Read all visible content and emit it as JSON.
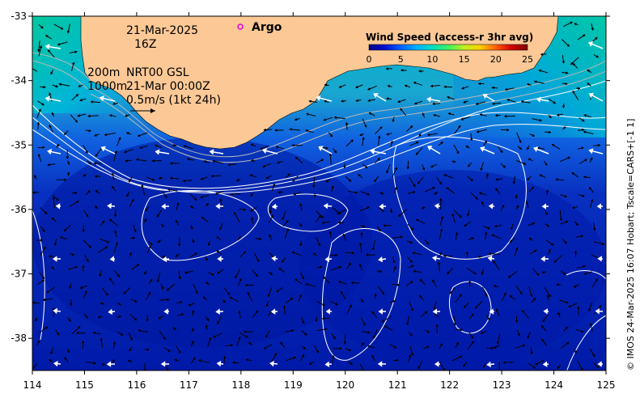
{
  "chart_data": {
    "type": "map",
    "region": "South-west Western Australia ocean surface currents",
    "x_axis": {
      "range": [
        114,
        125
      ],
      "ticks": [
        "114",
        "115",
        "116",
        "117",
        "118",
        "119",
        "120",
        "121",
        "122",
        "123",
        "124",
        "125"
      ]
    },
    "y_axis": {
      "range": [
        -38.5,
        -33
      ],
      "ticks": [
        "-33",
        "-34",
        "-35",
        "-36",
        "-37",
        "-38"
      ]
    },
    "annotations": {
      "date": "21-Mar-2025",
      "hour": "16Z",
      "depth_line_1": "200m",
      "depth_line_2": "1000m",
      "product": "NRT00 GSL",
      "product_time": "21-Mar 00:00Z",
      "vector_scale": "0.5m/s (1kt 24h)",
      "argo_label": "Argo"
    },
    "colorbar": {
      "title": "Wind Speed (access-r 3hr avg)",
      "ticks": [
        "0",
        "5",
        "10",
        "15",
        "20",
        "25"
      ],
      "range": [
        0,
        25
      ],
      "colors": [
        "#00008a",
        "#0010d0",
        "#0060ff",
        "#00b0ff",
        "#00e0c0",
        "#40f060",
        "#c0f020",
        "#ffd000",
        "#ff6000",
        "#d00000",
        "#800000"
      ]
    },
    "credit": "© IMOS 24-Mar-2025 16:07 Hobart; Tscale=CARS+[-1 1]",
    "colors": {
      "land": "#fbc896",
      "argo_marker": "#e000e0"
    }
  }
}
